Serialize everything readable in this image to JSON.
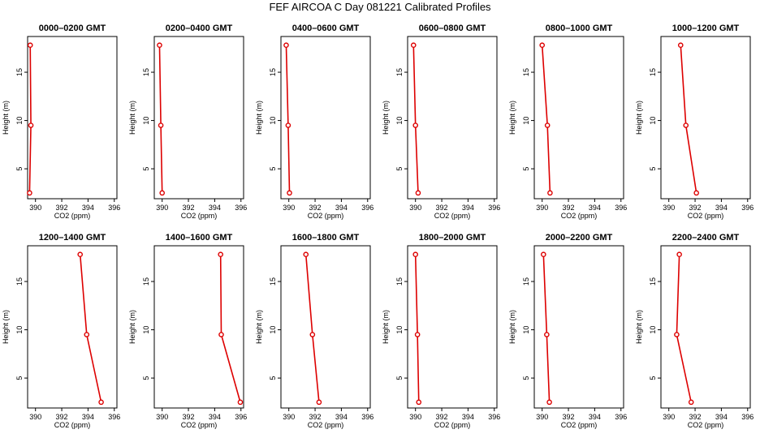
{
  "figure": {
    "title": "FEF AIRCOA C  Day 081221  Calibrated Profiles",
    "xlabel": "CO2 (ppm)",
    "ylabel": "Height (m)",
    "line_color": "#dd0000"
  },
  "chart_data": [
    {
      "type": "line",
      "title": "0000–0200 GMT",
      "xlabel": "CO2 (ppm)",
      "ylabel": "Height (m)",
      "xlim": [
        389.4,
        396.2
      ],
      "ylim": [
        1.9,
        18.7
      ],
      "xticks": [
        390,
        392,
        394,
        396
      ],
      "yticks": [
        5,
        10,
        15
      ],
      "x": [
        389.55,
        389.65,
        389.6
      ],
      "y": [
        2.5,
        9.5,
        17.8
      ]
    },
    {
      "type": "line",
      "title": "0200–0400 GMT",
      "xlabel": "CO2 (ppm)",
      "ylabel": "Height (m)",
      "xlim": [
        389.4,
        396.2
      ],
      "ylim": [
        1.9,
        18.7
      ],
      "xticks": [
        390,
        392,
        394,
        396
      ],
      "yticks": [
        5,
        10,
        15
      ],
      "x": [
        390.0,
        389.9,
        389.8
      ],
      "y": [
        2.5,
        9.5,
        17.8
      ]
    },
    {
      "type": "line",
      "title": "0400–0600 GMT",
      "xlabel": "CO2 (ppm)",
      "ylabel": "Height (m)",
      "xlim": [
        389.4,
        396.2
      ],
      "ylim": [
        1.9,
        18.7
      ],
      "xticks": [
        390,
        392,
        394,
        396
      ],
      "yticks": [
        5,
        10,
        15
      ],
      "x": [
        390.05,
        389.95,
        389.8
      ],
      "y": [
        2.5,
        9.5,
        17.8
      ]
    },
    {
      "type": "line",
      "title": "0600–0800 GMT",
      "xlabel": "CO2 (ppm)",
      "ylabel": "Height (m)",
      "xlim": [
        389.4,
        396.2
      ],
      "ylim": [
        1.9,
        18.7
      ],
      "xticks": [
        390,
        392,
        394,
        396
      ],
      "yticks": [
        5,
        10,
        15
      ],
      "x": [
        390.2,
        390.0,
        389.85
      ],
      "y": [
        2.5,
        9.5,
        17.8
      ]
    },
    {
      "type": "line",
      "title": "0800–1000 GMT",
      "xlabel": "CO2 (ppm)",
      "ylabel": "Height (m)",
      "xlim": [
        389.4,
        396.2
      ],
      "ylim": [
        1.9,
        18.7
      ],
      "xticks": [
        390,
        392,
        394,
        396
      ],
      "yticks": [
        5,
        10,
        15
      ],
      "x": [
        390.6,
        390.4,
        390.0
      ],
      "y": [
        2.5,
        9.5,
        17.8
      ]
    },
    {
      "type": "line",
      "title": "1000–1200 GMT",
      "xlabel": "CO2 (ppm)",
      "ylabel": "Height (m)",
      "xlim": [
        389.4,
        396.2
      ],
      "ylim": [
        1.9,
        18.7
      ],
      "xticks": [
        390,
        392,
        394,
        396
      ],
      "yticks": [
        5,
        10,
        15
      ],
      "x": [
        392.1,
        391.3,
        390.9
      ],
      "y": [
        2.5,
        9.5,
        17.8
      ]
    },
    {
      "type": "line",
      "title": "1200–1400 GMT",
      "xlabel": "CO2 (ppm)",
      "ylabel": "Height (m)",
      "xlim": [
        389.4,
        396.2
      ],
      "ylim": [
        1.9,
        18.7
      ],
      "xticks": [
        390,
        392,
        394,
        396
      ],
      "yticks": [
        5,
        10,
        15
      ],
      "x": [
        395.0,
        393.9,
        393.4
      ],
      "y": [
        2.5,
        9.5,
        17.8
      ]
    },
    {
      "type": "line",
      "title": "1400–1600 GMT",
      "xlabel": "CO2 (ppm)",
      "ylabel": "Height (m)",
      "xlim": [
        389.4,
        396.2
      ],
      "ylim": [
        1.9,
        18.7
      ],
      "xticks": [
        390,
        392,
        394,
        396
      ],
      "yticks": [
        5,
        10,
        15
      ],
      "x": [
        395.95,
        394.5,
        394.45
      ],
      "y": [
        2.5,
        9.5,
        17.8
      ]
    },
    {
      "type": "line",
      "title": "1600–1800 GMT",
      "xlabel": "CO2 (ppm)",
      "ylabel": "Height (m)",
      "xlim": [
        389.4,
        396.2
      ],
      "ylim": [
        1.9,
        18.7
      ],
      "xticks": [
        390,
        392,
        394,
        396
      ],
      "yticks": [
        5,
        10,
        15
      ],
      "x": [
        392.3,
        391.8,
        391.3
      ],
      "y": [
        2.5,
        9.5,
        17.8
      ]
    },
    {
      "type": "line",
      "title": "1800–2000 GMT",
      "xlabel": "CO2 (ppm)",
      "ylabel": "Height (m)",
      "xlim": [
        389.4,
        396.2
      ],
      "ylim": [
        1.9,
        18.7
      ],
      "xticks": [
        390,
        392,
        394,
        396
      ],
      "yticks": [
        5,
        10,
        15
      ],
      "x": [
        390.25,
        390.15,
        390.0
      ],
      "y": [
        2.5,
        9.5,
        17.8
      ]
    },
    {
      "type": "line",
      "title": "2000–2200 GMT",
      "xlabel": "CO2 (ppm)",
      "ylabel": "Height (m)",
      "xlim": [
        389.4,
        396.2
      ],
      "ylim": [
        1.9,
        18.7
      ],
      "xticks": [
        390,
        392,
        394,
        396
      ],
      "yticks": [
        5,
        10,
        15
      ],
      "x": [
        390.55,
        390.35,
        390.1
      ],
      "y": [
        2.5,
        9.5,
        17.8
      ]
    },
    {
      "type": "line",
      "title": "2200–2400 GMT",
      "xlabel": "CO2 (ppm)",
      "ylabel": "Height (m)",
      "xlim": [
        389.4,
        396.2
      ],
      "ylim": [
        1.9,
        18.7
      ],
      "xticks": [
        390,
        392,
        394,
        396
      ],
      "yticks": [
        5,
        10,
        15
      ],
      "x": [
        391.7,
        390.6,
        390.8
      ],
      "y": [
        2.5,
        9.5,
        17.8
      ]
    }
  ]
}
